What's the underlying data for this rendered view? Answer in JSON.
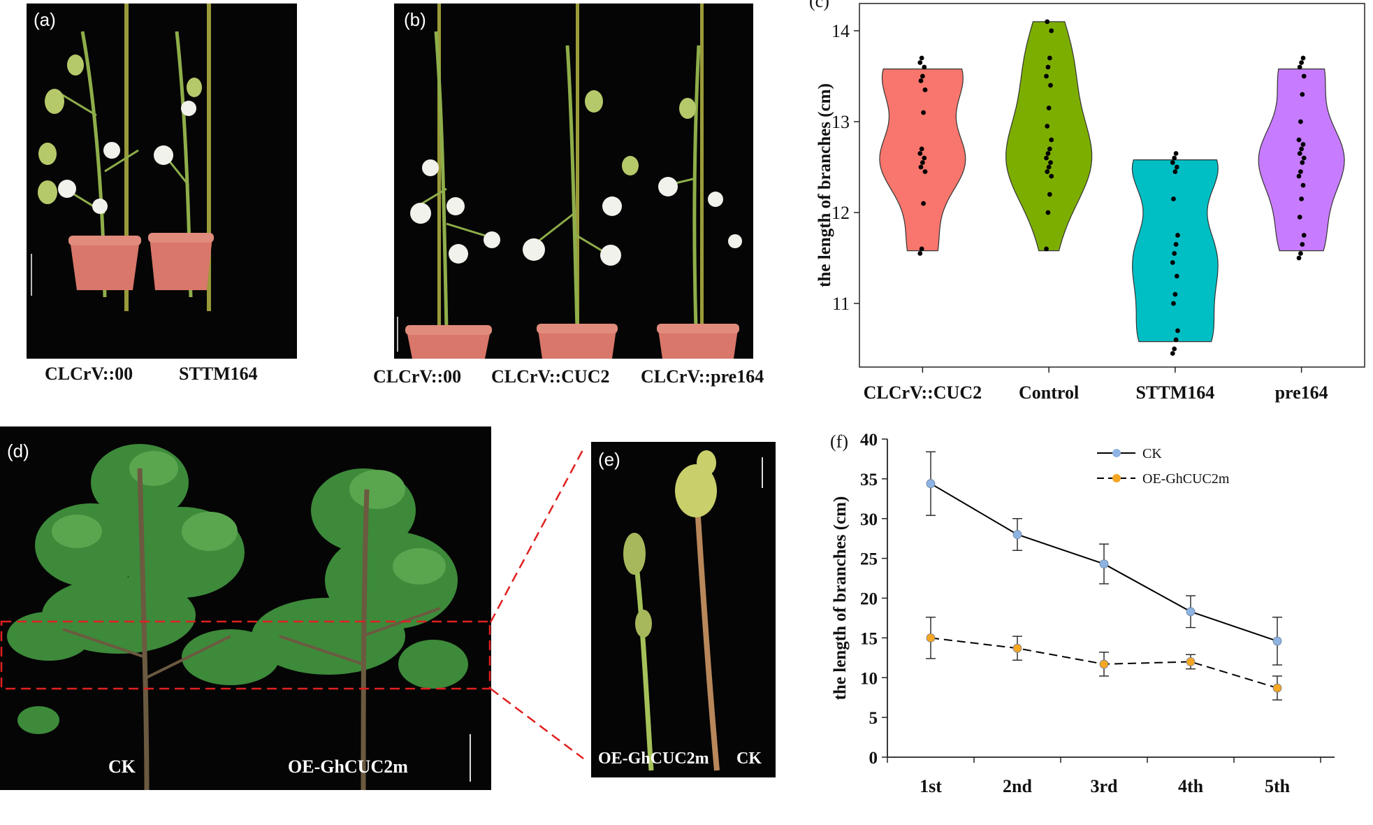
{
  "panels": {
    "a": {
      "label": "(a)",
      "captions": [
        "CLCrV::00",
        "STTM164"
      ]
    },
    "b": {
      "label": "(b)",
      "captions": [
        "CLCrV::00",
        "CLCrV::CUC2",
        "CLCrV::pre164"
      ]
    },
    "d": {
      "label": "(d)",
      "captions": [
        "CK",
        "OE-GhCUC2m"
      ]
    },
    "e": {
      "label": "(e)",
      "captions": [
        "OE-GhCUC2m",
        "CK"
      ]
    }
  },
  "chart_data": [
    {
      "panel_label": "(c)",
      "type": "violin",
      "title": "",
      "ylabel": "the length of branches (cm)",
      "xlabel": "",
      "ylim": [
        10.3,
        14.3
      ],
      "yticks": [
        11,
        12,
        13,
        14
      ],
      "grid": false,
      "categories": [
        "CLCrV::CUC2",
        "Control",
        "STTM164",
        "pre164"
      ],
      "colors": [
        "#f8766d",
        "#7cae00",
        "#00bfc4",
        "#c77cff"
      ],
      "series": [
        {
          "values": [
            11.55,
            11.6,
            12.1,
            12.45,
            12.5,
            12.55,
            12.6,
            12.65,
            12.7,
            13.1,
            13.35,
            13.45,
            13.5,
            13.6,
            13.65,
            13.7
          ],
          "range": [
            11.58,
            13.58
          ]
        },
        {
          "values": [
            11.6,
            12.0,
            12.2,
            12.4,
            12.45,
            12.5,
            12.55,
            12.6,
            12.65,
            12.7,
            12.8,
            12.95,
            13.15,
            13.4,
            13.5,
            13.6,
            13.7,
            14.0,
            14.1
          ],
          "range": [
            11.58,
            14.1
          ]
        },
        {
          "values": [
            10.45,
            10.5,
            10.6,
            10.7,
            11.0,
            11.1,
            11.3,
            11.45,
            11.55,
            11.65,
            11.75,
            12.15,
            12.45,
            12.5,
            12.55,
            12.6,
            12.65
          ],
          "range": [
            10.58,
            12.58
          ]
        },
        {
          "values": [
            11.5,
            11.55,
            11.65,
            11.75,
            11.95,
            12.15,
            12.3,
            12.4,
            12.45,
            12.55,
            12.6,
            12.65,
            12.7,
            12.75,
            12.8,
            13.0,
            13.3,
            13.5,
            13.6,
            13.65,
            13.7
          ],
          "range": [
            11.58,
            13.58
          ]
        }
      ]
    },
    {
      "panel_label": "(f)",
      "type": "line",
      "title": "",
      "ylabel": "the length of branches (cm)",
      "xlabel": "",
      "ylim": [
        0,
        40
      ],
      "yticks": [
        0,
        5,
        10,
        15,
        20,
        25,
        30,
        35,
        40
      ],
      "grid": false,
      "legend": "top-center",
      "categories": [
        "1st",
        "2nd",
        "3rd",
        "4th",
        "5th"
      ],
      "series": [
        {
          "name": "CK",
          "values": [
            34.4,
            28.0,
            24.3,
            18.3,
            14.6
          ],
          "errors": [
            4.0,
            2.0,
            2.5,
            2.0,
            3.0
          ],
          "line": "solid",
          "marker_color": "#8db3e2"
        },
        {
          "name": "OE-GhCUC2m",
          "values": [
            15.0,
            13.7,
            11.7,
            12.0,
            8.7
          ],
          "errors": [
            2.6,
            1.5,
            1.5,
            0.9,
            1.5
          ],
          "line": "dashed",
          "marker_color": "#f5a623"
        }
      ]
    }
  ]
}
